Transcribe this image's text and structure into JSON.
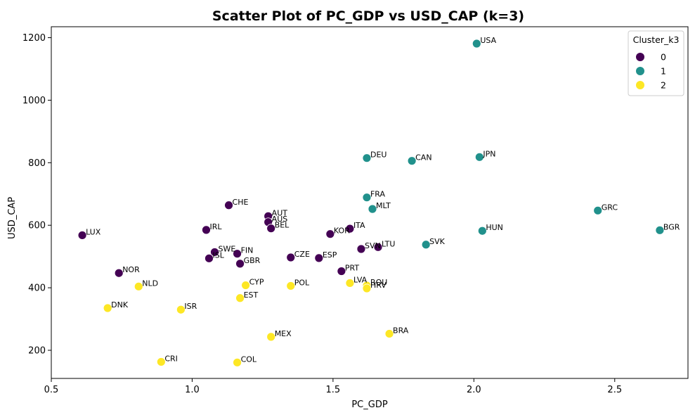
{
  "chart_data": {
    "type": "scatter",
    "title": "Scatter Plot of PC_GDP vs USD_CAP (k=3)",
    "xlabel": "PC_GDP",
    "ylabel": "USD_CAP",
    "xlim": [
      0.5,
      2.76
    ],
    "ylim": [
      110,
      1235
    ],
    "xticks": [
      0.5,
      1.0,
      1.5,
      2.0,
      2.5
    ],
    "xtick_labels": [
      "0.5",
      "1.0",
      "1.5",
      "2.0",
      "2.5"
    ],
    "yticks": [
      200,
      400,
      600,
      800,
      1000,
      1200
    ],
    "ytick_labels": [
      "200",
      "400",
      "600",
      "800",
      "1000",
      "1200"
    ],
    "grid": false,
    "legend": {
      "title": "Cluster_k3",
      "position": "top-right",
      "entries": [
        {
          "label": "0",
          "color": "#440154"
        },
        {
          "label": "1",
          "color": "#21918c"
        },
        {
          "label": "2",
          "color": "#fde725"
        }
      ]
    },
    "points": [
      {
        "label": "USA",
        "x": 2.01,
        "y": 1181,
        "cluster": 1
      },
      {
        "label": "DEU",
        "x": 1.62,
        "y": 815,
        "cluster": 1
      },
      {
        "label": "CAN",
        "x": 1.78,
        "y": 806,
        "cluster": 1
      },
      {
        "label": "JPN",
        "x": 2.02,
        "y": 818,
        "cluster": 1
      },
      {
        "label": "FRA",
        "x": 1.62,
        "y": 689,
        "cluster": 1
      },
      {
        "label": "MLT",
        "x": 1.64,
        "y": 652,
        "cluster": 1
      },
      {
        "label": "GRC",
        "x": 2.44,
        "y": 647,
        "cluster": 1
      },
      {
        "label": "HUN",
        "x": 2.03,
        "y": 582,
        "cluster": 1
      },
      {
        "label": "BGR",
        "x": 2.66,
        "y": 584,
        "cluster": 1
      },
      {
        "label": "SVK",
        "x": 1.83,
        "y": 538,
        "cluster": 1
      },
      {
        "label": "LUX",
        "x": 0.61,
        "y": 568,
        "cluster": 0
      },
      {
        "label": "NOR",
        "x": 0.74,
        "y": 447,
        "cluster": 0
      },
      {
        "label": "CHE",
        "x": 1.13,
        "y": 664,
        "cluster": 0
      },
      {
        "label": "IRL",
        "x": 1.05,
        "y": 585,
        "cluster": 0
      },
      {
        "label": "AUT",
        "x": 1.27,
        "y": 629,
        "cluster": 0
      },
      {
        "label": "AUS",
        "x": 1.27,
        "y": 610,
        "cluster": 0
      },
      {
        "label": "BEL",
        "x": 1.28,
        "y": 590,
        "cluster": 0
      },
      {
        "label": "SWE",
        "x": 1.08,
        "y": 514,
        "cluster": 0
      },
      {
        "label": "FIN",
        "x": 1.16,
        "y": 509,
        "cluster": 0
      },
      {
        "label": "ISL",
        "x": 1.06,
        "y": 494,
        "cluster": 0
      },
      {
        "label": "GBR",
        "x": 1.17,
        "y": 477,
        "cluster": 0
      },
      {
        "label": "CZE",
        "x": 1.35,
        "y": 497,
        "cluster": 0
      },
      {
        "label": "ESP",
        "x": 1.45,
        "y": 495,
        "cluster": 0
      },
      {
        "label": "KOR",
        "x": 1.49,
        "y": 572,
        "cluster": 0
      },
      {
        "label": "ITA",
        "x": 1.56,
        "y": 589,
        "cluster": 0
      },
      {
        "label": "SVN",
        "x": 1.6,
        "y": 524,
        "cluster": 0
      },
      {
        "label": "LTU",
        "x": 1.66,
        "y": 530,
        "cluster": 0
      },
      {
        "label": "PRT",
        "x": 1.53,
        "y": 453,
        "cluster": 0
      },
      {
        "label": "NLD",
        "x": 0.81,
        "y": 404,
        "cluster": 2
      },
      {
        "label": "DNK",
        "x": 0.7,
        "y": 335,
        "cluster": 2
      },
      {
        "label": "ISR",
        "x": 0.96,
        "y": 330,
        "cluster": 2
      },
      {
        "label": "CRI",
        "x": 0.89,
        "y": 163,
        "cluster": 2
      },
      {
        "label": "CYP",
        "x": 1.19,
        "y": 408,
        "cluster": 2
      },
      {
        "label": "EST",
        "x": 1.17,
        "y": 367,
        "cluster": 2
      },
      {
        "label": "COL",
        "x": 1.16,
        "y": 161,
        "cluster": 2
      },
      {
        "label": "MEX",
        "x": 1.28,
        "y": 243,
        "cluster": 2
      },
      {
        "label": "POL",
        "x": 1.35,
        "y": 406,
        "cluster": 2
      },
      {
        "label": "LVA",
        "x": 1.56,
        "y": 415,
        "cluster": 2
      },
      {
        "label": "ROU",
        "x": 1.62,
        "y": 407,
        "cluster": 2
      },
      {
        "label": "HRV",
        "x": 1.62,
        "y": 398,
        "cluster": 2
      },
      {
        "label": "BRA",
        "x": 1.7,
        "y": 253,
        "cluster": 2
      }
    ]
  }
}
